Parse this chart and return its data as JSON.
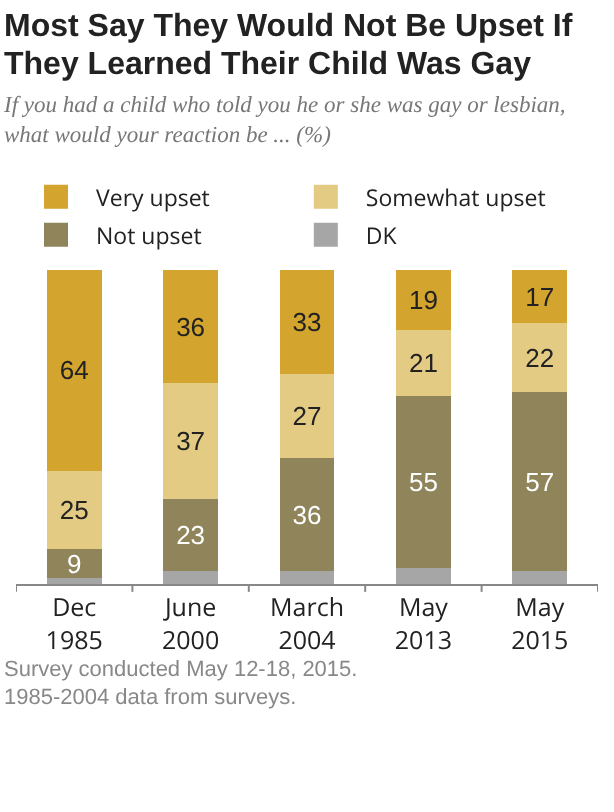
{
  "chart_data": {
    "type": "bar",
    "title": "Most Say They Would Not Be Upset If They Learned Their Child Was Gay",
    "subtitle": "If you had a child who told you he or she was gay or lesbian, what would your reaction be ... (%)",
    "categories": [
      "Dec 1985",
      "June 2000",
      "March 2004",
      "May 2013",
      "May 2015"
    ],
    "stacked": true,
    "series": [
      {
        "name": "DK",
        "color": "#a6a6a6",
        "values": [
          2,
          4,
          4,
          5,
          4
        ]
      },
      {
        "name": "Not upset",
        "color": "#8f845a",
        "values": [
          9,
          23,
          36,
          55,
          57
        ],
        "value_labels": [
          "9",
          "23",
          "36",
          "55",
          "57"
        ]
      },
      {
        "name": "Somewhat upset",
        "color": "#e3cb84",
        "values": [
          25,
          37,
          27,
          21,
          22
        ],
        "value_labels": [
          "25",
          "37",
          "27",
          "21",
          "22"
        ]
      },
      {
        "name": "Very upset",
        "color": "#d3a52f",
        "values": [
          64,
          36,
          33,
          19,
          17
        ],
        "value_labels": [
          "64",
          "36",
          "33",
          "19",
          "17"
        ]
      }
    ],
    "ylim": [
      0,
      100
    ],
    "tick_labels": "x",
    "legend": "top",
    "annotations": [
      "Survey conducted May 12-18, 2015.",
      "1985-2004 data from surveys."
    ]
  }
}
